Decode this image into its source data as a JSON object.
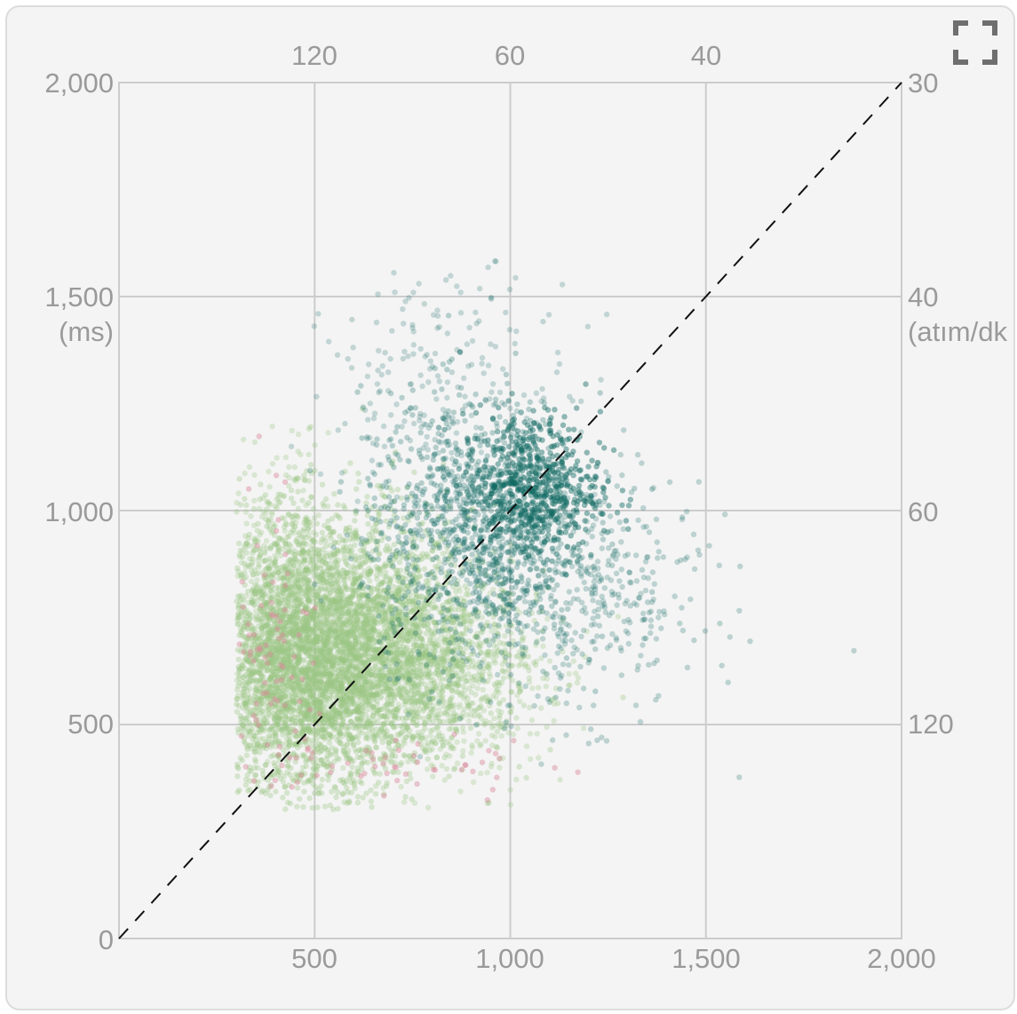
{
  "controls": {
    "expand_icon": "fullscreen-expand-icon"
  },
  "chart_data": {
    "type": "scatter",
    "title": "",
    "xlim": [
      0,
      2000
    ],
    "ylim": [
      0,
      2000
    ],
    "x_ticks": [
      "500",
      "1,000",
      "1,500",
      "2,000"
    ],
    "y_ticks": [
      "0",
      "500",
      "1,000",
      "1,500",
      "2,000"
    ],
    "ylabel": "(ms)",
    "top_axis_ticks": [
      "120",
      "60",
      "40"
    ],
    "right_axis_ticks": [
      "30",
      "40",
      "60",
      "120"
    ],
    "right_axis_label": "(atım/dk",
    "grid": true,
    "reference_line": {
      "style": "dashed",
      "from": [
        0,
        0
      ],
      "to": [
        2000,
        2000
      ]
    },
    "colors": {
      "light_green": "#9cc784",
      "teal": "#126b63",
      "pink": "#d98a9c",
      "line": "#111111",
      "grid": "#cccccc",
      "text": "#9a9a9a"
    },
    "series": [
      {
        "color_key": "light_green",
        "clusters": [
          {
            "cx": 560,
            "cy": 700,
            "sx": 170,
            "sy": 150,
            "n": 3600,
            "alpha": 0.35
          },
          {
            "cx": 470,
            "cy": 580,
            "sx": 110,
            "sy": 120,
            "n": 1400,
            "alpha": 0.35
          },
          {
            "cx": 780,
            "cy": 620,
            "sx": 150,
            "sy": 110,
            "n": 1200,
            "alpha": 0.3
          },
          {
            "cx": 400,
            "cy": 800,
            "sx": 70,
            "sy": 160,
            "n": 500,
            "alpha": 0.3
          }
        ]
      },
      {
        "color_key": "teal",
        "clusters": [
          {
            "cx": 1050,
            "cy": 1050,
            "sx": 90,
            "sy": 90,
            "n": 700,
            "alpha": 0.45
          },
          {
            "cx": 900,
            "cy": 960,
            "sx": 140,
            "sy": 150,
            "n": 900,
            "alpha": 0.28
          },
          {
            "cx": 1150,
            "cy": 800,
            "sx": 170,
            "sy": 140,
            "n": 500,
            "alpha": 0.25
          },
          {
            "cx": 850,
            "cy": 1250,
            "sx": 160,
            "sy": 150,
            "n": 250,
            "alpha": 0.22
          }
        ]
      },
      {
        "color_key": "pink",
        "clusters": [
          {
            "cx": 400,
            "cy": 700,
            "sx": 50,
            "sy": 200,
            "n": 80,
            "alpha": 0.45
          },
          {
            "cx": 700,
            "cy": 400,
            "sx": 200,
            "sy": 40,
            "n": 50,
            "alpha": 0.45
          }
        ]
      }
    ]
  }
}
